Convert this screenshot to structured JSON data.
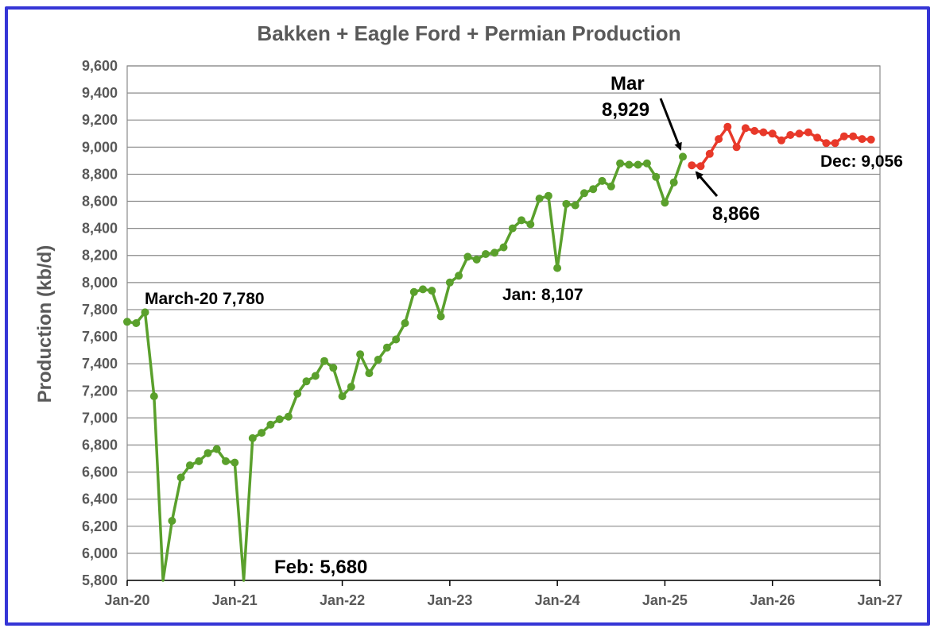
{
  "chart_data": {
    "type": "line",
    "title": "Bakken + Eagle Ford + Permian Production",
    "ylabel": "Production (kb/d)",
    "xlabel": "",
    "ylim": [
      5800,
      9600
    ],
    "y_ticks": [
      "5,800",
      "6,000",
      "6,200",
      "6,400",
      "6,600",
      "6,800",
      "7,000",
      "7,200",
      "7,400",
      "7,600",
      "7,800",
      "8,000",
      "8,200",
      "8,400",
      "8,600",
      "8,800",
      "9,000",
      "9,200",
      "9,400",
      "9,600"
    ],
    "x_ticks": [
      "Jan-20",
      "Jan-21",
      "Jan-22",
      "Jan-23",
      "Jan-24",
      "Jan-25",
      "Jan-26",
      "Jan-27"
    ],
    "grid": true,
    "series": [
      {
        "color": "#5aa02c",
        "start": "2020-01",
        "values": [
          7710,
          7700,
          7780,
          7160,
          5750,
          6240,
          6560,
          6650,
          6680,
          6740,
          6770,
          6680,
          6670,
          5680,
          6850,
          6890,
          6950,
          6990,
          7010,
          7180,
          7270,
          7310,
          7420,
          7370,
          7160,
          7230,
          7470,
          7330,
          7430,
          7520,
          7580,
          7700,
          7930,
          7950,
          7940,
          7750,
          8000,
          8050,
          8190,
          8170,
          8210,
          8220,
          8260,
          8400,
          8460,
          8430,
          8620,
          8640,
          8107,
          8580,
          8570,
          8660,
          8690,
          8750,
          8710,
          8880,
          8870,
          8870,
          8880,
          8780,
          8590,
          8740,
          8929
        ]
      },
      {
        "color": "#e8392a",
        "start": "2025-04",
        "values": [
          8866,
          8860,
          8950,
          9060,
          9150,
          9000,
          9140,
          9120,
          9110,
          9100,
          9050,
          9090,
          9100,
          9110,
          9070,
          9030,
          9030,
          9080,
          9080,
          9060,
          9056
        ]
      }
    ],
    "annotations": [
      {
        "text": "March-20 7,780"
      },
      {
        "text": "Feb: 5,680"
      },
      {
        "text": "Jan: 8,107"
      },
      {
        "text": "Mar"
      },
      {
        "text": "8,929"
      },
      {
        "text": "8,866"
      },
      {
        "text": "Dec: 9,056"
      }
    ]
  }
}
